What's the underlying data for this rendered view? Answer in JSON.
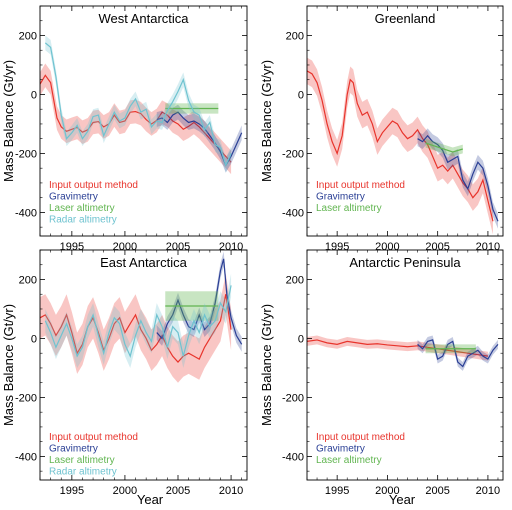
{
  "figure": {
    "xlabel": "Year",
    "ylabel": "Mass Balance (Gt/yr)"
  },
  "colors": {
    "input_output": "#e8342c",
    "gravimetry": "#2a3f95",
    "laser": "#62b551",
    "radar": "#6fc3d0"
  },
  "chart_data": [
    {
      "type": "line",
      "title": "West Antarctica",
      "xlabel": "Year",
      "ylabel": "Mass Balance (Gt/yr)",
      "xlim": [
        1992,
        2011.5
      ],
      "ylim": [
        -480,
        300
      ],
      "xticks": [
        1995,
        2000,
        2005,
        2010
      ],
      "yticks": [
        -400,
        -200,
        0,
        200
      ],
      "legend": [
        "Input output method",
        "Gravimetry",
        "Laser altimetry",
        "Radar altimetry"
      ],
      "legend_position": "bottom-left",
      "series": [
        {
          "name": "Input output method",
          "color_key": "input_output",
          "band": 40,
          "x": [
            1992.0,
            1992.5,
            1993.0,
            1993.3,
            1993.6,
            1994.0,
            1994.5,
            1995.0,
            1995.5,
            1996.0,
            1996.5,
            1997.0,
            1997.5,
            1998.0,
            1998.5,
            1999.0,
            1999.5,
            2000.0,
            2000.5,
            2001.0,
            2001.5,
            2002.0,
            2002.5,
            2003.0,
            2003.5,
            2004.0,
            2004.5,
            2005.0,
            2005.5,
            2006.0,
            2006.5,
            2007.0,
            2007.5,
            2008.0,
            2008.5,
            2009.0,
            2009.5,
            2010.0
          ],
          "y": [
            35,
            65,
            40,
            -20,
            -80,
            -110,
            -125,
            -118,
            -112,
            -128,
            -120,
            -95,
            -92,
            -110,
            -100,
            -70,
            -95,
            -90,
            -60,
            -58,
            -65,
            -85,
            -100,
            -88,
            -60,
            -70,
            -90,
            -100,
            -118,
            -108,
            -95,
            -110,
            -130,
            -150,
            -170,
            -190,
            -210,
            -230
          ]
        },
        {
          "name": "Gravimetry",
          "color_key": "gravimetry",
          "band": 25,
          "x": [
            2003.0,
            2003.5,
            2004.0,
            2004.5,
            2005.0,
            2005.5,
            2006.0,
            2006.5,
            2007.0,
            2007.5,
            2008.0,
            2008.5,
            2009.0,
            2009.5,
            2010.0,
            2010.5,
            2011.0
          ],
          "y": [
            -85,
            -80,
            -95,
            -70,
            -60,
            -80,
            -95,
            -90,
            -100,
            -115,
            -140,
            -165,
            -195,
            -240,
            -210,
            -170,
            -130
          ]
        },
        {
          "name": "Laser altimetry",
          "color_key": "laser",
          "box": [
            2003.8,
            2008.8,
            -65,
            -30
          ]
        },
        {
          "name": "Radar altimetry",
          "color_key": "radar",
          "band": 25,
          "x": [
            1992.5,
            1993.0,
            1993.5,
            1994.0,
            1994.5,
            1995.0,
            1995.5,
            1996.0,
            1996.5,
            1997.0,
            1997.5,
            1998.0,
            1998.5,
            1999.0,
            1999.5,
            2000.0,
            2000.5,
            2001.0,
            2001.5,
            2002.0,
            2002.5,
            2003.0,
            2003.5,
            2004.0,
            2004.5,
            2005.0,
            2005.5,
            2006.0,
            2006.5,
            2007.0,
            2007.5,
            2008.0,
            2008.5,
            2009.0,
            2009.5,
            2010.0
          ],
          "y": [
            175,
            160,
            60,
            -70,
            -150,
            -130,
            -105,
            -150,
            -125,
            -75,
            -70,
            -140,
            -100,
            -60,
            -90,
            -80,
            -40,
            -15,
            -60,
            -50,
            -110,
            -90,
            -95,
            -55,
            -25,
            10,
            50,
            -20,
            -60,
            -70,
            -120,
            -95,
            -170,
            -180,
            -240,
            -200
          ]
        }
      ]
    },
    {
      "type": "line",
      "title": "Greenland",
      "xlabel": "Year",
      "ylabel": "Mass Balance (Gt/yr)",
      "xlim": [
        1992,
        2011.5
      ],
      "ylim": [
        -480,
        300
      ],
      "xticks": [
        1995,
        2000,
        2005,
        2010
      ],
      "yticks": [
        -400,
        -200,
        0,
        200
      ],
      "legend": [
        "Input output method",
        "Gravimetry",
        "Laser altimetry"
      ],
      "legend_position": "bottom-left",
      "series": [
        {
          "name": "Input output method",
          "color_key": "input_output",
          "band": 45,
          "x": [
            1992.0,
            1992.5,
            1993.0,
            1993.5,
            1994.0,
            1994.5,
            1995.0,
            1995.5,
            1996.0,
            1996.3,
            1996.6,
            1997.0,
            1997.5,
            1998.0,
            1998.5,
            1999.0,
            1999.5,
            2000.0,
            2000.5,
            2001.0,
            2001.5,
            2002.0,
            2002.5,
            2003.0,
            2003.5,
            2004.0,
            2004.5,
            2005.0,
            2005.5,
            2006.0,
            2006.5,
            2007.0,
            2007.5,
            2008.0,
            2008.5,
            2009.0,
            2009.5,
            2010.0,
            2010.5
          ],
          "y": [
            80,
            70,
            40,
            -20,
            -100,
            -160,
            -200,
            -140,
            0,
            50,
            40,
            -30,
            -70,
            -60,
            -100,
            -160,
            -130,
            -110,
            -90,
            -100,
            -130,
            -150,
            -140,
            -120,
            -150,
            -170,
            -210,
            -250,
            -240,
            -260,
            -240,
            -270,
            -300,
            -320,
            -350,
            -330,
            -290,
            -360,
            -430
          ]
        },
        {
          "name": "Gravimetry",
          "color_key": "gravimetry",
          "band": 25,
          "x": [
            2003.0,
            2003.5,
            2004.0,
            2004.5,
            2005.0,
            2005.5,
            2006.0,
            2006.5,
            2007.0,
            2007.5,
            2008.0,
            2008.5,
            2009.0,
            2009.5,
            2010.0,
            2010.5,
            2011.0
          ],
          "y": [
            -150,
            -160,
            -140,
            -160,
            -170,
            -190,
            -230,
            -220,
            -210,
            -290,
            -320,
            -270,
            -230,
            -250,
            -310,
            -390,
            -430
          ]
        },
        {
          "name": "Laser altimetry",
          "color_key": "laser",
          "line": [
            [
              2003.8,
              -165
            ],
            [
              2006.5,
              -195
            ],
            [
              2007.5,
              -185
            ]
          ],
          "band": 15
        }
      ]
    },
    {
      "type": "line",
      "title": "East Antarctica",
      "xlabel": "Year",
      "ylabel": "Mass Balance (Gt/yr)",
      "xlim": [
        1992,
        2011.5
      ],
      "ylim": [
        -480,
        300
      ],
      "xticks": [
        1995,
        2000,
        2005,
        2010
      ],
      "yticks": [
        -400,
        -200,
        0,
        200
      ],
      "legend": [
        "Input output method",
        "Gravimetry",
        "Laser altimetry",
        "Radar altimetry"
      ],
      "legend_position": "bottom-left",
      "series": [
        {
          "name": "Input output method",
          "color_key": "input_output",
          "band": 70,
          "x": [
            1992.0,
            1992.5,
            1993.0,
            1993.5,
            1994.0,
            1994.5,
            1995.0,
            1995.5,
            1996.0,
            1996.5,
            1997.0,
            1997.5,
            1998.0,
            1998.5,
            1999.0,
            1999.5,
            2000.0,
            2000.5,
            2001.0,
            2001.5,
            2002.0,
            2002.5,
            2003.0,
            2003.5,
            2004.0,
            2004.5,
            2005.0,
            2005.5,
            2006.0,
            2006.5,
            2007.0,
            2007.5,
            2008.0,
            2008.5,
            2009.0,
            2009.5,
            2010.0
          ],
          "y": [
            70,
            80,
            50,
            10,
            40,
            80,
            20,
            -50,
            -20,
            40,
            70,
            20,
            -40,
            0,
            50,
            70,
            20,
            50,
            80,
            30,
            0,
            -40,
            -20,
            10,
            -30,
            -60,
            -80,
            -60,
            -50,
            -60,
            -70,
            -30,
            0,
            30,
            60,
            150,
            30
          ]
        },
        {
          "name": "Gravimetry",
          "color_key": "gravimetry",
          "band": 25,
          "x": [
            2003.0,
            2003.5,
            2004.0,
            2004.5,
            2005.0,
            2005.5,
            2006.0,
            2006.5,
            2007.0,
            2007.5,
            2008.0,
            2008.5,
            2009.0,
            2009.3,
            2009.6,
            2010.0,
            2010.5,
            2011.0
          ],
          "y": [
            20,
            0,
            50,
            80,
            130,
            80,
            40,
            30,
            80,
            30,
            50,
            120,
            230,
            270,
            150,
            70,
            10,
            -20
          ]
        },
        {
          "name": "Laser altimetry",
          "color_key": "laser",
          "box": [
            2003.8,
            2008.8,
            60,
            160
          ],
          "mid": 110
        },
        {
          "name": "Radar altimetry",
          "color_key": "radar",
          "band": 40,
          "x": [
            1992.5,
            1993.0,
            1993.5,
            1994.0,
            1994.5,
            1995.0,
            1995.5,
            1996.0,
            1996.5,
            1997.0,
            1997.5,
            1998.0,
            1998.5,
            1999.0,
            1999.5,
            2000.0,
            2000.5,
            2001.0,
            2001.5,
            2002.0,
            2002.5,
            2003.0,
            2003.5,
            2004.0,
            2004.5,
            2005.0,
            2005.5,
            2006.0,
            2006.5,
            2007.0,
            2007.5,
            2008.0,
            2008.5,
            2009.0,
            2009.5,
            2010.0
          ],
          "y": [
            60,
            20,
            -30,
            10,
            50,
            0,
            -60,
            -30,
            40,
            80,
            10,
            -50,
            20,
            70,
            50,
            -20,
            -60,
            10,
            60,
            20,
            -10,
            80,
            40,
            -30,
            40,
            20,
            -60,
            10,
            60,
            20,
            80,
            40,
            60,
            120,
            90,
            180
          ]
        }
      ]
    },
    {
      "type": "line",
      "title": "Antarctic Peninsula",
      "xlabel": "Year",
      "ylabel": "Mass Balance (Gt/yr)",
      "xlim": [
        1992,
        2011.5
      ],
      "ylim": [
        -480,
        300
      ],
      "xticks": [
        1995,
        2000,
        2005,
        2010
      ],
      "yticks": [
        -400,
        -200,
        0,
        200
      ],
      "legend": [
        "Input output method",
        "Gravimetry",
        "Laser altimetry"
      ],
      "legend_position": "bottom-left",
      "series": [
        {
          "name": "Input output method",
          "color_key": "input_output",
          "band": 15,
          "x": [
            1992.0,
            1993.0,
            1994.0,
            1995.0,
            1996.0,
            1997.0,
            1998.0,
            1999.0,
            2000.0,
            2001.0,
            2002.0,
            2003.0,
            2004.0,
            2005.0,
            2006.0,
            2007.0,
            2008.0,
            2009.0,
            2010.0
          ],
          "y": [
            -10,
            -5,
            -15,
            -20,
            -10,
            -15,
            -20,
            -18,
            -22,
            -25,
            -28,
            -25,
            -30,
            -35,
            -40,
            -45,
            -50,
            -55,
            -60
          ]
        },
        {
          "name": "Gravimetry",
          "color_key": "gravimetry",
          "band": 15,
          "x": [
            2003.0,
            2003.5,
            2004.0,
            2004.5,
            2005.0,
            2005.5,
            2006.0,
            2006.5,
            2007.0,
            2007.5,
            2008.0,
            2008.5,
            2009.0,
            2009.5,
            2010.0,
            2010.5,
            2011.0
          ],
          "y": [
            -20,
            -35,
            -10,
            -5,
            -70,
            -60,
            -20,
            -10,
            -80,
            -95,
            -60,
            -50,
            -40,
            -60,
            -70,
            -40,
            -20
          ]
        },
        {
          "name": "Laser altimetry",
          "color_key": "laser",
          "line": [
            [
              2003.8,
              -35
            ],
            [
              2008.8,
              -35
            ]
          ],
          "band": 15
        }
      ]
    }
  ]
}
